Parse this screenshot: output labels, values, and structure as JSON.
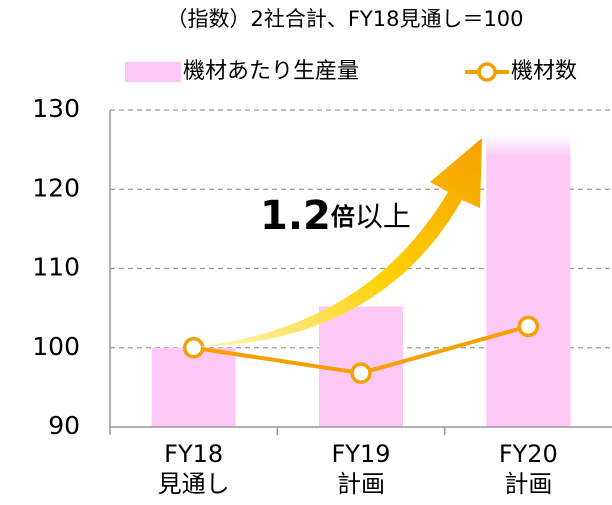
{
  "chart_data": {
    "type": "bar_line",
    "title": "（指数）2社合計、FY18見通し＝100",
    "categories": [
      [
        "FY18",
        "見通し"
      ],
      [
        "FY19",
        "計画"
      ],
      [
        "FY20",
        "計画"
      ]
    ],
    "series": [
      {
        "name": "機材あたり生産量",
        "type": "bar",
        "color": "#fcc8f6",
        "values": [
          100,
          105.2,
          127
        ]
      },
      {
        "name": "機材数",
        "type": "line",
        "color": "#f5a000",
        "values": [
          100,
          96.8,
          102.7
        ]
      }
    ],
    "annotation": [
      "1.2",
      "倍",
      "以上"
    ],
    "ylim": [
      90,
      130
    ],
    "yticks": [
      90,
      100,
      110,
      120,
      130
    ],
    "grid": true
  }
}
